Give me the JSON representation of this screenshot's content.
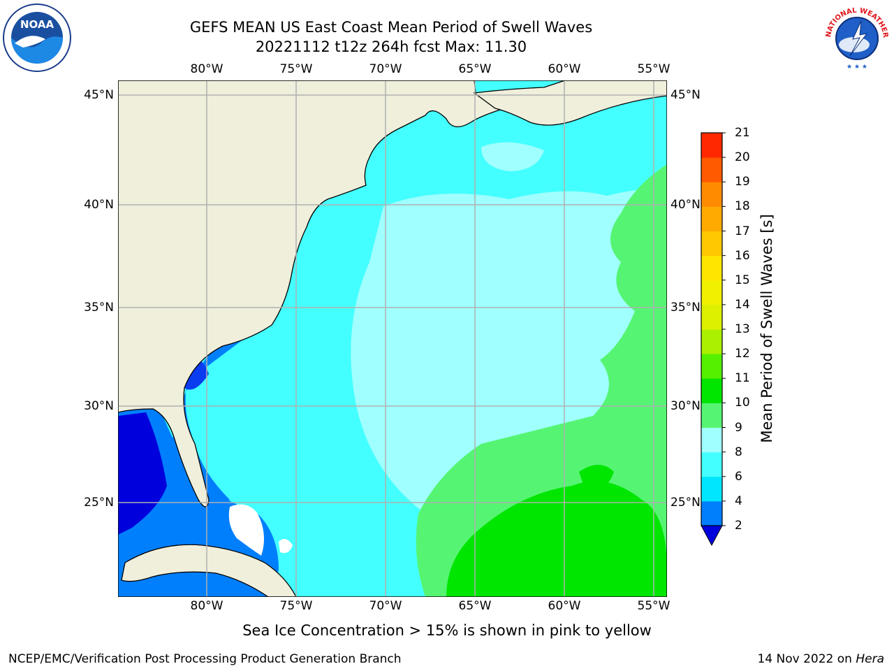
{
  "title": {
    "line1": "GEFS MEAN US East Coast Mean Period of Swell Waves",
    "line2": "20221112 t12z 264h fcst   Max: 11.30"
  },
  "logos": {
    "left": {
      "icon": "noaa-logo-icon",
      "text": "NOAA"
    },
    "right": {
      "icon": "nws-logo-icon",
      "ring_text": "NATIONAL WEATHER SERVICE"
    }
  },
  "axes": {
    "longitudes": [
      "80°W",
      "75°W",
      "70°W",
      "65°W",
      "60°W",
      "55°W"
    ],
    "latitudes": [
      "45°N",
      "40°N",
      "35°N",
      "30°N",
      "25°N"
    ]
  },
  "colorbar": {
    "title": "Mean Period of Swell Waves [s]",
    "ticks": [
      "2",
      "4",
      "6",
      "8",
      "9",
      "10",
      "11",
      "12",
      "13",
      "14",
      "15",
      "16",
      "17",
      "18",
      "19",
      "20",
      "21"
    ],
    "colors": [
      "#0a3cf0",
      "#007ffd",
      "#00e6ff",
      "#44ffff",
      "#a0ffff",
      "#55f573",
      "#00e600",
      "#55ef00",
      "#aaf000",
      "#dcf000",
      "#f0f000",
      "#ffe600",
      "#ffc800",
      "#ffaa00",
      "#ff8c00",
      "#ff5a00",
      "#ff2800",
      "#ff0000"
    ],
    "under_color": "#0000dd"
  },
  "map_colors": {
    "land": "#efefdc",
    "grid": "#b0b0b0",
    "coast": "#000000",
    "missing": "#ffffff"
  },
  "note": "Sea Ice Concentration > 15% is shown in pink to yellow",
  "footer": {
    "left": "NCEP/EMC/Verification Post Processing Product Generation Branch",
    "right_prefix": "14 Nov 2022 on ",
    "right_machine": "Hera"
  }
}
